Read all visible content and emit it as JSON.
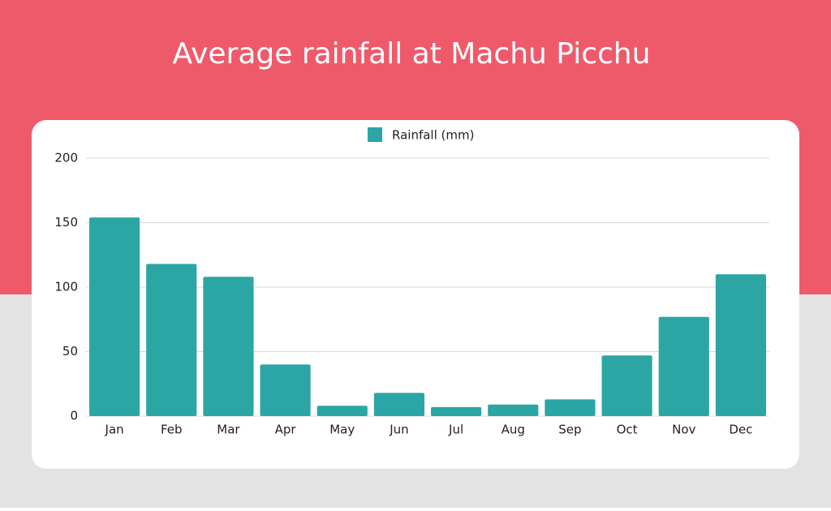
{
  "chart_data": {
    "type": "bar",
    "title": "Average rainfall at Machu Picchu",
    "categories": [
      "Jan",
      "Feb",
      "Mar",
      "Apr",
      "May",
      "Jun",
      "Jul",
      "Aug",
      "Sep",
      "Oct",
      "Nov",
      "Dec"
    ],
    "series": [
      {
        "name": "Rainfall (mm)",
        "color": "#2ba6a4",
        "values": [
          154,
          118,
          108,
          40,
          8,
          18,
          7,
          9,
          13,
          47,
          77,
          110
        ]
      }
    ],
    "ylim": [
      0,
      200
    ],
    "yticks": [
      0,
      50,
      100,
      150,
      200
    ],
    "grid": true,
    "legend": "top"
  }
}
